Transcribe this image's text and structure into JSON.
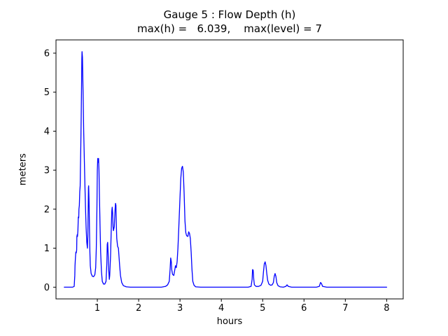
{
  "title": {
    "line1": "Gauge 5 : Flow Depth (h)",
    "line2": "max(h) =   6.039,    max(level) = 7"
  },
  "chart_data": {
    "type": "line",
    "title": "Gauge 5 : Flow Depth (h)",
    "subtitle": "max(h) =   6.039,    max(level) = 7",
    "xlabel": "hours",
    "ylabel": "meters",
    "xlim": [
      0,
      8.4
    ],
    "ylim": [
      -0.3,
      6.34
    ],
    "xticks": [
      1,
      2,
      3,
      4,
      5,
      6,
      7,
      8
    ],
    "yticks": [
      0,
      1,
      2,
      3,
      4,
      5,
      6
    ],
    "grid": false,
    "legend": "none",
    "line_color": "#0000ff",
    "max_h": 6.039,
    "max_level": 7,
    "points": [
      [
        0.2,
        0
      ],
      [
        0.3,
        0
      ],
      [
        0.4,
        0
      ],
      [
        0.44,
        0.02
      ],
      [
        0.455,
        0.3
      ],
      [
        0.46,
        0.55
      ],
      [
        0.47,
        0.75
      ],
      [
        0.48,
        0.9
      ],
      [
        0.49,
        0.88
      ],
      [
        0.5,
        0.95
      ],
      [
        0.505,
        1.3
      ],
      [
        0.515,
        1.35
      ],
      [
        0.52,
        1.3
      ],
      [
        0.53,
        1.45
      ],
      [
        0.54,
        1.8
      ],
      [
        0.55,
        1.78
      ],
      [
        0.555,
        2.0
      ],
      [
        0.565,
        2.1
      ],
      [
        0.575,
        2.45
      ],
      [
        0.585,
        2.6
      ],
      [
        0.59,
        3.0
      ],
      [
        0.6,
        3.6
      ],
      [
        0.61,
        4.4
      ],
      [
        0.62,
        5.3
      ],
      [
        0.625,
        5.85
      ],
      [
        0.63,
        6.039
      ],
      [
        0.64,
        5.9
      ],
      [
        0.65,
        5.3
      ],
      [
        0.66,
        4.7
      ],
      [
        0.67,
        4.0
      ],
      [
        0.685,
        3.3
      ],
      [
        0.7,
        2.6
      ],
      [
        0.715,
        2.0
      ],
      [
        0.73,
        1.5
      ],
      [
        0.745,
        1.15
      ],
      [
        0.76,
        1.0
      ],
      [
        0.77,
        1.3
      ],
      [
        0.78,
        2.1
      ],
      [
        0.785,
        2.55
      ],
      [
        0.79,
        2.6
      ],
      [
        0.8,
        2.2
      ],
      [
        0.81,
        1.5
      ],
      [
        0.82,
        0.9
      ],
      [
        0.83,
        0.55
      ],
      [
        0.85,
        0.35
      ],
      [
        0.88,
        0.28
      ],
      [
        0.91,
        0.27
      ],
      [
        0.94,
        0.32
      ],
      [
        0.96,
        0.5
      ],
      [
        0.975,
        1.0
      ],
      [
        0.99,
        2.0
      ],
      [
        1.0,
        3.0
      ],
      [
        1.01,
        3.3
      ],
      [
        1.02,
        3.2
      ],
      [
        1.03,
        3.3
      ],
      [
        1.04,
        3.0
      ],
      [
        1.05,
        2.4
      ],
      [
        1.065,
        1.6
      ],
      [
        1.08,
        0.9
      ],
      [
        1.1,
        0.4
      ],
      [
        1.12,
        0.15
      ],
      [
        1.15,
        0.08
      ],
      [
        1.18,
        0.08
      ],
      [
        1.21,
        0.15
      ],
      [
        1.23,
        0.6
      ],
      [
        1.24,
        1.1
      ],
      [
        1.25,
        1.15
      ],
      [
        1.26,
        0.9
      ],
      [
        1.275,
        0.45
      ],
      [
        1.29,
        0.2
      ],
      [
        1.3,
        0.3
      ],
      [
        1.32,
        0.8
      ],
      [
        1.34,
        1.6
      ],
      [
        1.35,
        1.95
      ],
      [
        1.36,
        2.05
      ],
      [
        1.37,
        1.9
      ],
      [
        1.38,
        1.55
      ],
      [
        1.39,
        1.45
      ],
      [
        1.41,
        1.55
      ],
      [
        1.43,
        2.0
      ],
      [
        1.44,
        2.15
      ],
      [
        1.45,
        2.1
      ],
      [
        1.46,
        1.6
      ],
      [
        1.47,
        1.25
      ],
      [
        1.49,
        1.05
      ],
      [
        1.51,
        1.0
      ],
      [
        1.52,
        0.85
      ],
      [
        1.54,
        0.55
      ],
      [
        1.56,
        0.3
      ],
      [
        1.59,
        0.12
      ],
      [
        1.63,
        0.04
      ],
      [
        1.7,
        0.01
      ],
      [
        1.8,
        0
      ],
      [
        2.0,
        0
      ],
      [
        2.3,
        0
      ],
      [
        2.55,
        0
      ],
      [
        2.65,
        0.02
      ],
      [
        2.7,
        0.06
      ],
      [
        2.74,
        0.15
      ],
      [
        2.76,
        0.45
      ],
      [
        2.775,
        0.75
      ],
      [
        2.79,
        0.65
      ],
      [
        2.8,
        0.45
      ],
      [
        2.82,
        0.33
      ],
      [
        2.85,
        0.3
      ],
      [
        2.87,
        0.42
      ],
      [
        2.89,
        0.55
      ],
      [
        2.91,
        0.5
      ],
      [
        2.93,
        0.65
      ],
      [
        2.95,
        1.0
      ],
      [
        2.97,
        1.5
      ],
      [
        3.0,
        2.3
      ],
      [
        3.02,
        2.8
      ],
      [
        3.04,
        3.05
      ],
      [
        3.06,
        3.1
      ],
      [
        3.08,
        2.95
      ],
      [
        3.1,
        2.4
      ],
      [
        3.12,
        1.7
      ],
      [
        3.14,
        1.4
      ],
      [
        3.16,
        1.32
      ],
      [
        3.19,
        1.3
      ],
      [
        3.21,
        1.42
      ],
      [
        3.23,
        1.38
      ],
      [
        3.25,
        1.25
      ],
      [
        3.27,
        0.9
      ],
      [
        3.29,
        0.45
      ],
      [
        3.31,
        0.15
      ],
      [
        3.34,
        0.05
      ],
      [
        3.38,
        0.01
      ],
      [
        3.5,
        0
      ],
      [
        3.8,
        0
      ],
      [
        4.1,
        0
      ],
      [
        4.4,
        0
      ],
      [
        4.65,
        0
      ],
      [
        4.72,
        0.02
      ],
      [
        4.745,
        0.2
      ],
      [
        4.755,
        0.45
      ],
      [
        4.77,
        0.44
      ],
      [
        4.785,
        0.2
      ],
      [
        4.8,
        0.06
      ],
      [
        4.84,
        0.02
      ],
      [
        4.9,
        0.02
      ],
      [
        4.96,
        0.05
      ],
      [
        5.0,
        0.15
      ],
      [
        5.02,
        0.4
      ],
      [
        5.04,
        0.6
      ],
      [
        5.06,
        0.65
      ],
      [
        5.08,
        0.55
      ],
      [
        5.1,
        0.35
      ],
      [
        5.12,
        0.18
      ],
      [
        5.15,
        0.08
      ],
      [
        5.19,
        0.05
      ],
      [
        5.23,
        0.06
      ],
      [
        5.26,
        0.12
      ],
      [
        5.28,
        0.28
      ],
      [
        5.3,
        0.35
      ],
      [
        5.32,
        0.28
      ],
      [
        5.34,
        0.12
      ],
      [
        5.37,
        0.04
      ],
      [
        5.42,
        0.01
      ],
      [
        5.5,
        0
      ],
      [
        5.56,
        0.02
      ],
      [
        5.59,
        0.06
      ],
      [
        5.62,
        0.02
      ],
      [
        5.7,
        0
      ],
      [
        5.9,
        0
      ],
      [
        6.1,
        0
      ],
      [
        6.3,
        0
      ],
      [
        6.37,
        0.02
      ],
      [
        6.4,
        0.12
      ],
      [
        6.42,
        0.1
      ],
      [
        6.45,
        0.02
      ],
      [
        6.55,
        0
      ],
      [
        6.8,
        0
      ],
      [
        7.1,
        0
      ],
      [
        7.4,
        0
      ],
      [
        7.7,
        0
      ],
      [
        8.0,
        0
      ]
    ]
  }
}
